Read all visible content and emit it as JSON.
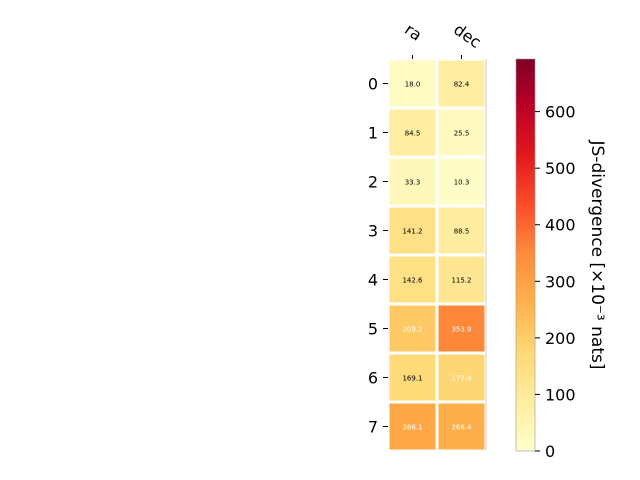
{
  "chart_data": {
    "type": "heatmap",
    "title": "",
    "columns": [
      "ra",
      "dec"
    ],
    "rows": [
      "0",
      "1",
      "2",
      "3",
      "4",
      "5",
      "6",
      "7"
    ],
    "values": [
      [
        18.0,
        82.4
      ],
      [
        84.5,
        25.5
      ],
      [
        33.3,
        10.3
      ],
      [
        141.2,
        88.5
      ],
      [
        142.6,
        115.2
      ],
      [
        209.2,
        353.9
      ],
      [
        169.1,
        177.4
      ],
      [
        286.1,
        268.4
      ]
    ],
    "cell_labels": [
      [
        "18.0",
        "82.4"
      ],
      [
        "84.5",
        "25.5"
      ],
      [
        "33.3",
        "10.3"
      ],
      [
        "141.2",
        "88.5"
      ],
      [
        "142.6",
        "115.2"
      ],
      [
        "209.2",
        "353.9"
      ],
      [
        "169.1",
        "177.4"
      ],
      [
        "286.1",
        "268.4"
      ]
    ],
    "colorbar": {
      "label": "JS-divergence [×10⁻³ nats]",
      "range": [
        0,
        693
      ],
      "ticks": [
        0,
        100,
        200,
        300,
        400,
        500,
        600
      ],
      "tick_labels": [
        "0",
        "100",
        "200",
        "300",
        "400",
        "500",
        "600"
      ],
      "colormap": "YlOrRd"
    },
    "grid": false
  }
}
